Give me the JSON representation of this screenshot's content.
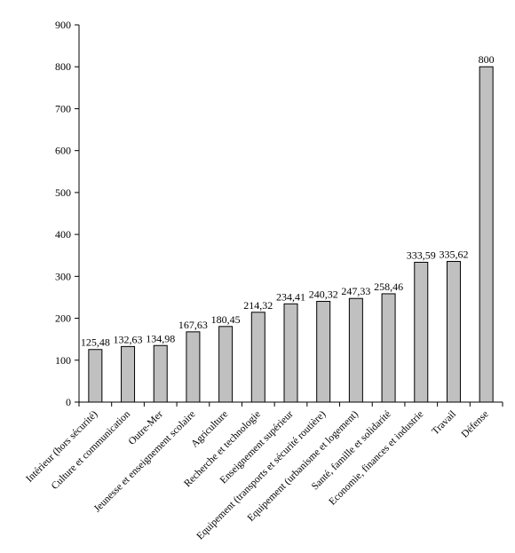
{
  "chart_data": {
    "type": "bar",
    "title": "",
    "xlabel": "",
    "ylabel": "",
    "ylim": [
      0,
      900
    ],
    "yticks": [
      0,
      100,
      200,
      300,
      400,
      500,
      600,
      700,
      800,
      900
    ],
    "grid": false,
    "legend": "none",
    "bar_color": "#c0c0c0",
    "categories": [
      "Intérieur (hors sécurité)",
      "Culture et communication",
      "Outre-Mer",
      "Jeunesse et enseignement scolaire",
      "Agriculture",
      "Recherche et technologie",
      "Enseignement supérieur",
      "Equipement (transports et sécurité routière)",
      "Equipement (urbanisme et logement)",
      "Santé, famille et solidarité",
      "Economie, finances et industrie",
      "Travail",
      "Défense"
    ],
    "values": [
      125.48,
      132.63,
      134.98,
      167.63,
      180.45,
      214.32,
      234.41,
      240.32,
      247.33,
      258.46,
      333.59,
      335.62,
      800
    ],
    "value_labels": [
      "125,48",
      "132,63",
      "134,98",
      "167,63",
      "180,45",
      "214,32",
      "234,41",
      "240,32",
      "247,33",
      "258,46",
      "333,59",
      "335,62",
      "800"
    ]
  }
}
